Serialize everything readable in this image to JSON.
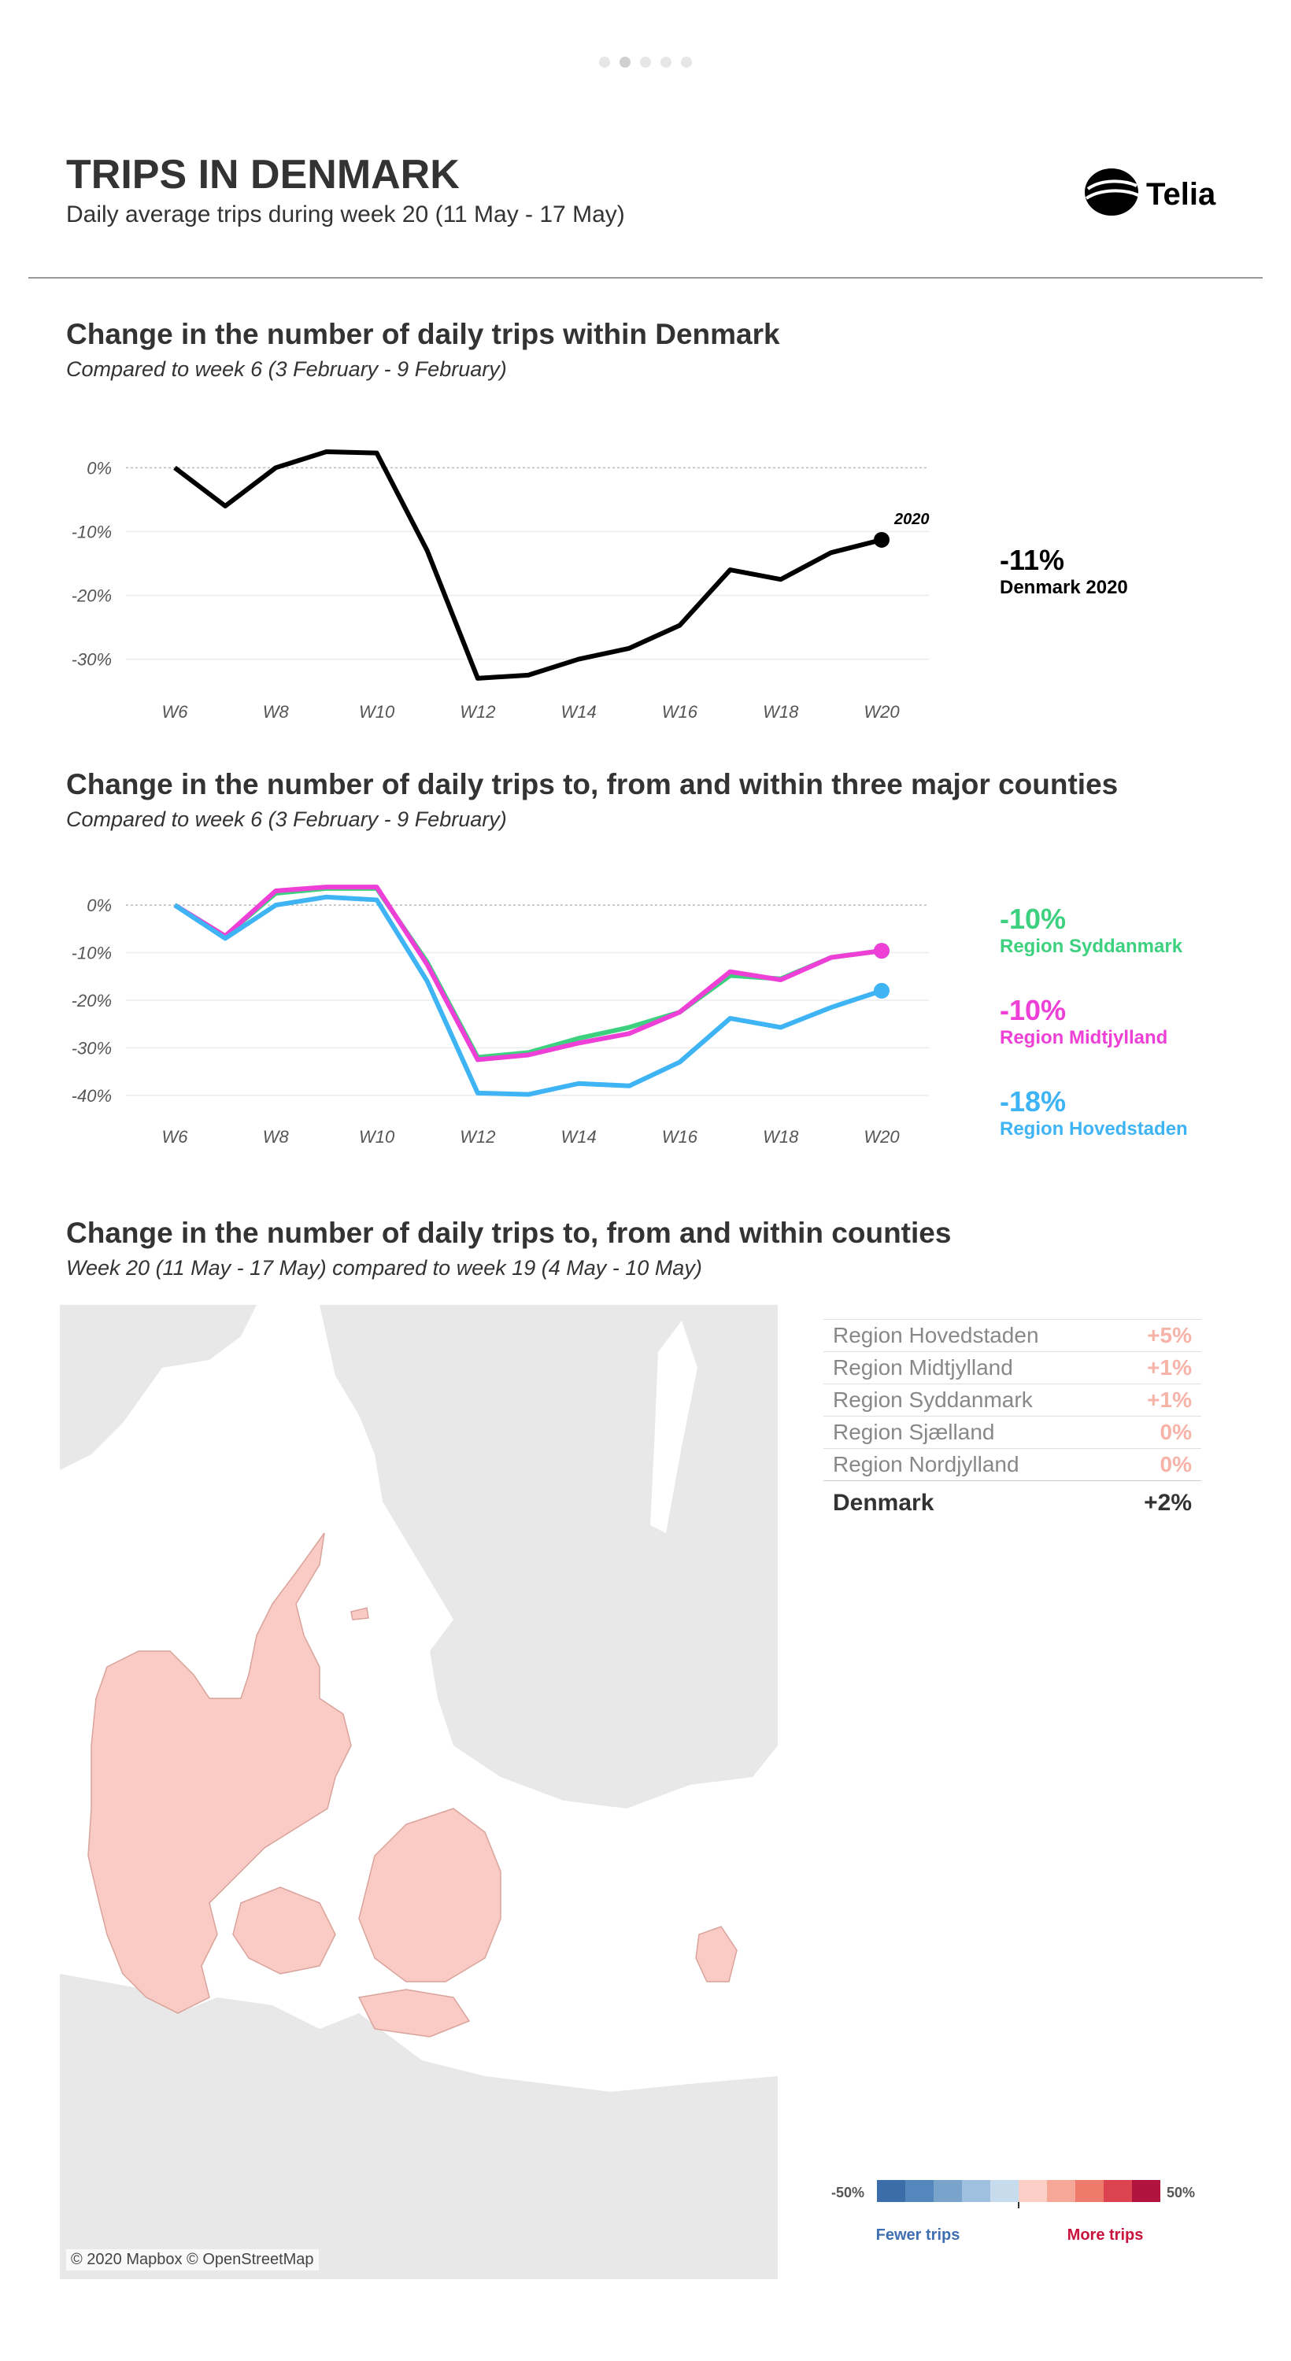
{
  "header": {
    "title": "TRIPS IN DENMARK",
    "subtitle": "Daily average trips during week 20 (11 May - 17 May)",
    "logo_text": "Telia"
  },
  "pager": {
    "count": 5,
    "active": 1
  },
  "section1": {
    "title": "Change in the number of daily trips within Denmark",
    "subtitle": "Compared to week 6 (3 February - 9 February)",
    "callout": {
      "value": "-11%",
      "label": "Denmark 2020"
    }
  },
  "section2": {
    "title": "Change in the number of daily trips to, from and within three major counties",
    "subtitle": "Compared to week 6 (3 February - 9 February)",
    "callouts": [
      {
        "value": "-10%",
        "label": "Region Syddanmark",
        "color": "#3dd17f"
      },
      {
        "value": "-10%",
        "label": "Region Midtjylland",
        "color": "#ee3fd6"
      },
      {
        "value": "-18%",
        "label": "Region Hovedstaden",
        "color": "#3fb4f5"
      }
    ]
  },
  "section3": {
    "title": "Change in the number of daily trips to, from and within counties",
    "subtitle": "Week 20 (11 May - 17 May) compared to week 19 (4 May - 10 May)",
    "map_credit": "© 2020 Mapbox © OpenStreetMap",
    "table": [
      {
        "name": "Region Hovedstaden",
        "value": "+5%"
      },
      {
        "name": "Region Midtjylland",
        "value": "+1%"
      },
      {
        "name": "Region Syddanmark",
        "value": "+1%"
      },
      {
        "name": "Region Sjælland",
        "value": "0%"
      },
      {
        "name": "Region Nordjylland",
        "value": "0%"
      }
    ],
    "total": {
      "name": "Denmark",
      "value": "+2%"
    },
    "legend": {
      "min_label": "-50%",
      "max_label": "50%",
      "fewer_label": "Fewer trips",
      "more_label": "More trips",
      "colors": [
        "#3b6ea8",
        "#5488bd",
        "#7aa3cc",
        "#9fc1df",
        "#c6dcec",
        "#fbcfc5",
        "#f6a797",
        "#ee7a6b",
        "#dc4350",
        "#b0133e"
      ],
      "fewer_color": "#3f6fb0",
      "more_color": "#c8143c"
    }
  },
  "chart_data": [
    {
      "type": "line",
      "x": [
        "W6",
        "W7",
        "W8",
        "W9",
        "W10",
        "W11",
        "W12",
        "W13",
        "W14",
        "W15",
        "W16",
        "W17",
        "W18",
        "W19",
        "W20"
      ],
      "xticks": [
        "W6",
        "W8",
        "W10",
        "W12",
        "W14",
        "W16",
        "W18",
        "W20"
      ],
      "yticks": [
        "0%",
        "-10%",
        "-20%",
        "-30%"
      ],
      "ylim": [
        -34,
        3
      ],
      "series": [
        {
          "name": "2020",
          "color": "#000000",
          "values": [
            0,
            -6,
            0,
            2.5,
            2.3,
            -13,
            -33,
            -32.5,
            -30,
            -28.3,
            -24.7,
            -16,
            -17.5,
            -13.3,
            -11.3
          ]
        }
      ]
    },
    {
      "type": "line",
      "x": [
        "W6",
        "W7",
        "W8",
        "W9",
        "W10",
        "W11",
        "W12",
        "W13",
        "W14",
        "W15",
        "W16",
        "W17",
        "W18",
        "W19",
        "W20"
      ],
      "xticks": [
        "W6",
        "W8",
        "W10",
        "W12",
        "W14",
        "W16",
        "W18",
        "W20"
      ],
      "yticks": [
        "0%",
        "-10%",
        "-20%",
        "-30%",
        "-40%"
      ],
      "ylim": [
        -43,
        2
      ],
      "series": [
        {
          "name": "Region Syddanmark",
          "color": "#3dd17f",
          "values": [
            0,
            -6.5,
            2.5,
            3.5,
            3.5,
            -12,
            -32,
            -31,
            -28,
            -25.7,
            -22.5,
            -14.8,
            -15.5,
            -11,
            -9.6
          ]
        },
        {
          "name": "Region Midtjylland",
          "color": "#ee3fd6",
          "values": [
            0,
            -6.5,
            3,
            3.8,
            3.8,
            -12.5,
            -32.5,
            -31.5,
            -29,
            -27,
            -22.5,
            -14,
            -15.7,
            -11,
            -9.6
          ]
        },
        {
          "name": "Region Hovedstaden",
          "color": "#3fb4f5",
          "values": [
            0,
            -7,
            0,
            1.7,
            1.1,
            -16,
            -39.5,
            -39.8,
            -37.5,
            -38,
            -33,
            -23.8,
            -25.7,
            -21.5,
            -18
          ]
        }
      ]
    }
  ]
}
